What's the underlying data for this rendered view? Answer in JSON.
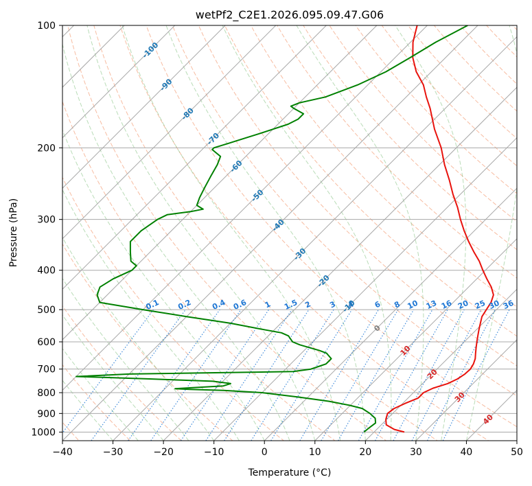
{
  "chart_data": {
    "type": "line",
    "title": "wetPf2_C2E1.2026.095.09.47.G06",
    "xlabel": "Temperature (°C)",
    "ylabel": "Pressure (hPa)",
    "xlim": [
      -40,
      50
    ],
    "ylim": [
      1050,
      100
    ],
    "y_scale": "log",
    "grid": true,
    "x_ticks": [
      "−40",
      "−30",
      "−20",
      "−10",
      "0",
      "10",
      "20",
      "30",
      "40",
      "50"
    ],
    "y_ticks": [
      "100",
      "200",
      "300",
      "400",
      "500",
      "600",
      "700",
      "800",
      "900",
      "1000"
    ],
    "colors": {
      "temperature": "#e8120c",
      "dewpoint": "#008000",
      "isotherm": "#a8a8a8",
      "dry_adiabat": "#f4a582",
      "moist_adiabat": "#7fbf7b",
      "mixing_ratio": "#1f77d4",
      "label_blue": "#1f78b4",
      "label_red": "#d62728"
    },
    "isotherm_labels": [
      {
        "text": "-100",
        "p": 115,
        "t": -100
      },
      {
        "text": "-90",
        "p": 140,
        "t": -90
      },
      {
        "text": "-80",
        "p": 165,
        "t": -80
      },
      {
        "text": "-70",
        "p": 190,
        "t": -70
      },
      {
        "text": "-60",
        "p": 222,
        "t": -60
      },
      {
        "text": "-50",
        "p": 262,
        "t": -50
      },
      {
        "text": "-40",
        "p": 310,
        "t": -40
      },
      {
        "text": "-30",
        "p": 365,
        "t": -30
      },
      {
        "text": "-20",
        "p": 425,
        "t": -20
      },
      {
        "text": "-10",
        "p": 490,
        "t": -10
      },
      {
        "text": "0",
        "p": 555,
        "t": 0
      },
      {
        "text": "10",
        "p": 630,
        "t": 10
      },
      {
        "text": "20",
        "p": 720,
        "t": 20
      },
      {
        "text": "30",
        "p": 820,
        "t": 30
      },
      {
        "text": "40",
        "p": 930,
        "t": 40
      }
    ],
    "mixing_ratio_labels": [
      "0.1",
      "0.2",
      "0.4",
      "0.6",
      "1",
      "1.5",
      "2",
      "3",
      "4",
      "6",
      "8",
      "10",
      "13",
      "16",
      "20",
      "25",
      "30",
      "36"
    ],
    "series": [
      {
        "name": "",
        "key": "temperature",
        "points": [
          [
            1000,
            26
          ],
          [
            985,
            23.5
          ],
          [
            960,
            21
          ],
          [
            930,
            19.8
          ],
          [
            900,
            19
          ],
          [
            875,
            19.3
          ],
          [
            850,
            20.5
          ],
          [
            825,
            22
          ],
          [
            800,
            22
          ],
          [
            780,
            23
          ],
          [
            760,
            25
          ],
          [
            740,
            26
          ],
          [
            720,
            26.5
          ],
          [
            700,
            26.6
          ],
          [
            680,
            26.2
          ],
          [
            660,
            25.5
          ],
          [
            640,
            24.5
          ],
          [
            620,
            23.5
          ],
          [
            600,
            22.5
          ],
          [
            580,
            21.5
          ],
          [
            560,
            20.5
          ],
          [
            540,
            19.5
          ],
          [
            520,
            18.5
          ],
          [
            500,
            18
          ],
          [
            480,
            17.5
          ],
          [
            460,
            16.5
          ],
          [
            440,
            14.5
          ],
          [
            420,
            12
          ],
          [
            400,
            9.5
          ],
          [
            380,
            7
          ],
          [
            360,
            4
          ],
          [
            340,
            1
          ],
          [
            320,
            -2
          ],
          [
            300,
            -5
          ],
          [
            280,
            -8
          ],
          [
            260,
            -11.5
          ],
          [
            240,
            -15
          ],
          [
            220,
            -19
          ],
          [
            200,
            -23
          ],
          [
            180,
            -28
          ],
          [
            160,
            -33
          ],
          [
            150,
            -36
          ],
          [
            140,
            -39
          ],
          [
            130,
            -43
          ],
          [
            120,
            -46.5
          ],
          [
            110,
            -49.5
          ],
          [
            100,
            -52
          ]
        ]
      },
      {
        "name": "",
        "key": "dewpoint",
        "points": [
          [
            1000,
            18
          ],
          [
            975,
            18.2
          ],
          [
            950,
            18.5
          ],
          [
            925,
            17.5
          ],
          [
            900,
            15.5
          ],
          [
            875,
            13
          ],
          [
            860,
            10
          ],
          [
            840,
            5
          ],
          [
            820,
            -2
          ],
          [
            800,
            -10
          ],
          [
            790,
            -18
          ],
          [
            785,
            -25
          ],
          [
            782,
            -28
          ],
          [
            778,
            -25
          ],
          [
            770,
            -19
          ],
          [
            760,
            -18
          ],
          [
            750,
            -22
          ],
          [
            740,
            -35
          ],
          [
            730,
            -50
          ],
          [
            720,
            -40
          ],
          [
            710,
            -8
          ],
          [
            700,
            -5
          ],
          [
            690,
            -4
          ],
          [
            680,
            -3
          ],
          [
            670,
            -3
          ],
          [
            660,
            -3
          ],
          [
            650,
            -4
          ],
          [
            640,
            -5
          ],
          [
            630,
            -7
          ],
          [
            620,
            -9.5
          ],
          [
            610,
            -12
          ],
          [
            600,
            -14
          ],
          [
            590,
            -15
          ],
          [
            580,
            -16
          ],
          [
            570,
            -18
          ],
          [
            560,
            -22
          ],
          [
            540,
            -30
          ],
          [
            520,
            -40
          ],
          [
            500,
            -50
          ],
          [
            480,
            -60
          ],
          [
            460,
            -62
          ],
          [
            440,
            -63
          ],
          [
            420,
            -62
          ],
          [
            400,
            -60
          ],
          [
            390,
            -60
          ],
          [
            380,
            -62
          ],
          [
            360,
            -64
          ],
          [
            340,
            -66
          ],
          [
            320,
            -66
          ],
          [
            300,
            -65
          ],
          [
            292,
            -64
          ],
          [
            287,
            -60
          ],
          [
            283,
            -58
          ],
          [
            277,
            -60
          ],
          [
            265,
            -61
          ],
          [
            250,
            -62
          ],
          [
            235,
            -63
          ],
          [
            220,
            -64
          ],
          [
            210,
            -65
          ],
          [
            202,
            -68
          ],
          [
            200,
            -68
          ],
          [
            195,
            -66
          ],
          [
            190,
            -64
          ],
          [
            185,
            -62
          ],
          [
            180,
            -60
          ],
          [
            175,
            -58
          ],
          [
            170,
            -57
          ],
          [
            165,
            -57
          ],
          [
            160,
            -60
          ],
          [
            158,
            -61
          ],
          [
            155,
            -60
          ],
          [
            150,
            -56
          ],
          [
            140,
            -52
          ],
          [
            130,
            -49
          ],
          [
            120,
            -47
          ],
          [
            110,
            -45
          ],
          [
            100,
            -42
          ]
        ]
      }
    ]
  }
}
